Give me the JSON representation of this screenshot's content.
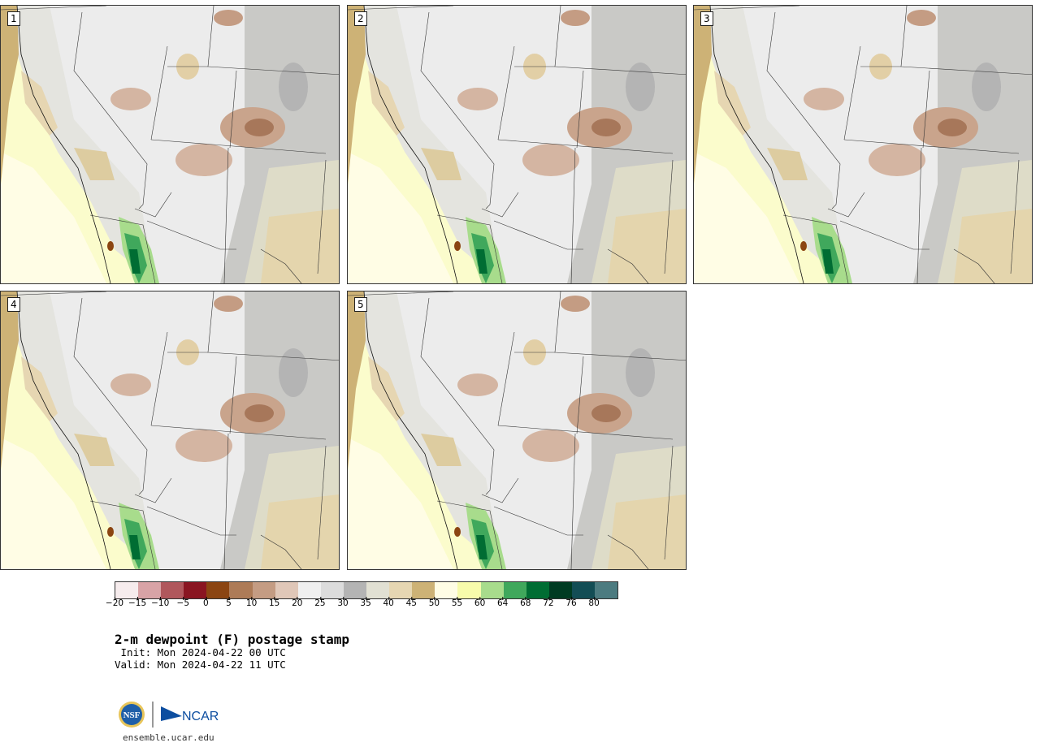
{
  "panels": [
    {
      "label": "1"
    },
    {
      "label": "2"
    },
    {
      "label": "3"
    },
    {
      "label": "4"
    },
    {
      "label": "5"
    }
  ],
  "legend": {
    "tick_labels": [
      "−20",
      "−15",
      "−10",
      "−5",
      "0",
      "5",
      "10",
      "15",
      "20",
      "25",
      "30",
      "35",
      "40",
      "45",
      "50",
      "55",
      "60",
      "64",
      "68",
      "72",
      "76",
      "80"
    ],
    "colors": [
      "#f6eced",
      "#d8a3a6",
      "#b0575c",
      "#8a1521",
      "#8b4512",
      "#ad7b57",
      "#c49c83",
      "#e0c7b8",
      "#f0f0f0",
      "#dcdcdc",
      "#b4b4b4",
      "#e1e0d3",
      "#e6d6b2",
      "#cdb276",
      "#fffde5",
      "#f7fbab",
      "#a8dc8c",
      "#40a85c",
      "#006d33",
      "#003b22",
      "#134d55",
      "#4c7b80"
    ]
  },
  "title": "2-m dewpoint (F) postage stamp",
  "init": " Init: Mon 2024-04-22 00 UTC",
  "valid": "Valid: Mon 2024-04-22 11 UTC",
  "logo": {
    "nsf_text": "NSF",
    "ncar_text": "NCAR"
  },
  "url": "ensemble.ucar.edu"
}
